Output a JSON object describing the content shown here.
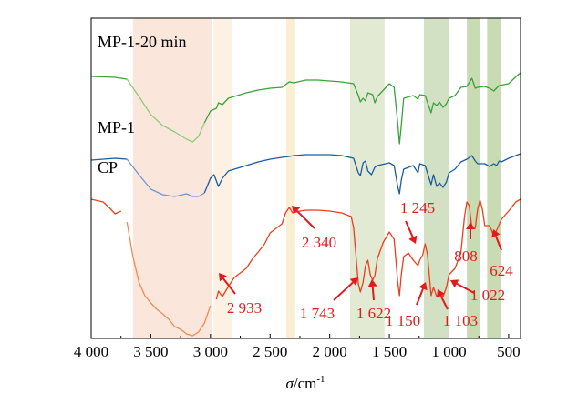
{
  "chart_data": {
    "type": "line",
    "xlabel_symbol": "σ",
    "xlabel_unit": "/cm",
    "xlabel_sup": "-1",
    "x_reversed": true,
    "xlim": [
      4000,
      400
    ],
    "x_ticks": [
      {
        "value": 4000,
        "label": "4 000"
      },
      {
        "value": 3500,
        "label": "3 500"
      },
      {
        "value": 3000,
        "label": "3 000"
      },
      {
        "value": 2500,
        "label": "2 500"
      },
      {
        "value": 2000,
        "label": "2 000"
      },
      {
        "value": 1500,
        "label": "1 500"
      },
      {
        "value": 1000,
        "label": "1 000"
      },
      {
        "value": 500,
        "label": "500"
      }
    ],
    "grid": false,
    "shaded_bands": [
      {
        "from": 3650,
        "to": 2990,
        "color": "#fbe6dc"
      },
      {
        "from": 2975,
        "to": 2820,
        "color": "#fdf1e3"
      },
      {
        "from": 2365,
        "to": 2290,
        "color": "#fbefd3"
      },
      {
        "from": 1830,
        "to": 1540,
        "color": "#e3ead4"
      },
      {
        "from": 1210,
        "to": 1000,
        "color": "#d2e0c4"
      },
      {
        "from": 850,
        "to": 740,
        "color": "#c9dbb3"
      },
      {
        "from": 680,
        "to": 560,
        "color": "#c9dbb3"
      }
    ],
    "series": [
      {
        "name": "MP-1-20 min",
        "color": "#3aa23a",
        "light_color": "#8ccd77",
        "light_range": [
          3700,
          3050
        ],
        "points": [
          [
            4000,
            64
          ],
          [
            3800,
            65
          ],
          [
            3700,
            67
          ],
          [
            3600,
            86
          ],
          [
            3500,
            106
          ],
          [
            3400,
            118
          ],
          [
            3300,
            125
          ],
          [
            3200,
            133
          ],
          [
            3150,
            136
          ],
          [
            3100,
            130
          ],
          [
            3050,
            115
          ],
          [
            3000,
            102
          ],
          [
            2950,
            99
          ],
          [
            2933,
            93
          ],
          [
            2900,
            95
          ],
          [
            2850,
            88
          ],
          [
            2700,
            82
          ],
          [
            2600,
            79
          ],
          [
            2500,
            77
          ],
          [
            2400,
            76
          ],
          [
            2340,
            70
          ],
          [
            2300,
            71
          ],
          [
            2200,
            68
          ],
          [
            2100,
            68
          ],
          [
            2000,
            69
          ],
          [
            1900,
            70
          ],
          [
            1800,
            72
          ],
          [
            1760,
            85
          ],
          [
            1743,
            92
          ],
          [
            1720,
            88
          ],
          [
            1700,
            91
          ],
          [
            1680,
            82
          ],
          [
            1640,
            84
          ],
          [
            1622,
            93
          ],
          [
            1600,
            86
          ],
          [
            1500,
            72
          ],
          [
            1460,
            76
          ],
          [
            1430,
            115
          ],
          [
            1415,
            138
          ],
          [
            1400,
            118
          ],
          [
            1380,
            88
          ],
          [
            1300,
            85
          ],
          [
            1260,
            89
          ],
          [
            1245,
            84
          ],
          [
            1200,
            85
          ],
          [
            1150,
            104
          ],
          [
            1130,
            93
          ],
          [
            1103,
            96
          ],
          [
            1080,
            92
          ],
          [
            1050,
            98
          ],
          [
            1022,
            94
          ],
          [
            1000,
            88
          ],
          [
            950,
            85
          ],
          [
            900,
            76
          ],
          [
            850,
            75
          ],
          [
            808,
            66
          ],
          [
            780,
            77
          ],
          [
            760,
            76
          ],
          [
            700,
            75
          ],
          [
            660,
            77
          ],
          [
            624,
            80
          ],
          [
            580,
            74
          ],
          [
            500,
            72
          ],
          [
            420,
            62
          ],
          [
            400,
            60
          ]
        ]
      },
      {
        "name": "MP-1",
        "color": "#1d5aa0",
        "light_color": "#6f97cf",
        "light_range": [
          3700,
          3050
        ],
        "points": [
          [
            4000,
            156
          ],
          [
            3800,
            154
          ],
          [
            3700,
            155
          ],
          [
            3600,
            172
          ],
          [
            3500,
            188
          ],
          [
            3400,
            194
          ],
          [
            3300,
            196
          ],
          [
            3200,
            193
          ],
          [
            3150,
            196
          ],
          [
            3100,
            196
          ],
          [
            3050,
            192
          ],
          [
            3000,
            176
          ],
          [
            2970,
            172
          ],
          [
            2933,
            185
          ],
          [
            2900,
            176
          ],
          [
            2850,
            168
          ],
          [
            2700,
            162
          ],
          [
            2600,
            158
          ],
          [
            2500,
            155
          ],
          [
            2400,
            153
          ],
          [
            2340,
            152
          ],
          [
            2300,
            151
          ],
          [
            2200,
            150
          ],
          [
            2100,
            150
          ],
          [
            2000,
            150
          ],
          [
            1900,
            151
          ],
          [
            1800,
            154
          ],
          [
            1760,
            170
          ],
          [
            1743,
            173
          ],
          [
            1720,
            159
          ],
          [
            1700,
            157
          ],
          [
            1680,
            168
          ],
          [
            1650,
            172
          ],
          [
            1622,
            164
          ],
          [
            1600,
            162
          ],
          [
            1500,
            159
          ],
          [
            1460,
            162
          ],
          [
            1430,
            185
          ],
          [
            1415,
            193
          ],
          [
            1400,
            178
          ],
          [
            1380,
            166
          ],
          [
            1300,
            162
          ],
          [
            1260,
            170
          ],
          [
            1245,
            160
          ],
          [
            1200,
            162
          ],
          [
            1150,
            183
          ],
          [
            1130,
            172
          ],
          [
            1103,
            185
          ],
          [
            1080,
            181
          ],
          [
            1050,
            186
          ],
          [
            1022,
            180
          ],
          [
            1000,
            170
          ],
          [
            950,
            166
          ],
          [
            900,
            158
          ],
          [
            850,
            155
          ],
          [
            808,
            151
          ],
          [
            780,
            157
          ],
          [
            760,
            160
          ],
          [
            700,
            160
          ],
          [
            660,
            163
          ],
          [
            624,
            160
          ],
          [
            600,
            162
          ],
          [
            580,
            157
          ],
          [
            560,
            158
          ],
          [
            500,
            154
          ],
          [
            420,
            150
          ],
          [
            400,
            149
          ]
        ]
      },
      {
        "name": "CP",
        "color": "#e8401c",
        "light_color": "#f08a55",
        "light_range": [
          3720,
          2990
        ],
        "points": [
          [
            4000,
            199
          ],
          [
            3900,
            202
          ],
          [
            3850,
            208
          ],
          [
            3800,
            215
          ],
          [
            3750,
            212
          ],
          [
            3700,
            224
          ],
          [
            3650,
            262
          ],
          [
            3600,
            290
          ],
          [
            3550,
            305
          ],
          [
            3500,
            313
          ],
          [
            3450,
            320
          ],
          [
            3400,
            325
          ],
          [
            3350,
            331
          ],
          [
            3300,
            339
          ],
          [
            3250,
            342
          ],
          [
            3200,
            347
          ],
          [
            3150,
            349
          ],
          [
            3100,
            345
          ],
          [
            3050,
            335
          ],
          [
            3000,
            316
          ],
          [
            2950,
            309
          ],
          [
            2933,
            300
          ],
          [
            2900,
            306
          ],
          [
            2850,
            295
          ],
          [
            2800,
            285
          ],
          [
            2700,
            275
          ],
          [
            2650,
            265
          ],
          [
            2600,
            257
          ],
          [
            2550,
            249
          ],
          [
            2500,
            236
          ],
          [
            2450,
            231
          ],
          [
            2400,
            226
          ],
          [
            2370,
            214
          ],
          [
            2340,
            208
          ],
          [
            2310,
            214
          ],
          [
            2250,
            212
          ],
          [
            2200,
            211
          ],
          [
            2100,
            211
          ],
          [
            2000,
            212
          ],
          [
            1900,
            214
          ],
          [
            1820,
            218
          ],
          [
            1800,
            230
          ],
          [
            1760,
            292
          ],
          [
            1743,
            301
          ],
          [
            1720,
            290
          ],
          [
            1700,
            272
          ],
          [
            1680,
            266
          ],
          [
            1660,
            282
          ],
          [
            1640,
            288
          ],
          [
            1622,
            283
          ],
          [
            1600,
            264
          ],
          [
            1550,
            246
          ],
          [
            1500,
            235
          ],
          [
            1460,
            243
          ],
          [
            1430,
            290
          ],
          [
            1415,
            305
          ],
          [
            1400,
            282
          ],
          [
            1380,
            262
          ],
          [
            1340,
            258
          ],
          [
            1300,
            266
          ],
          [
            1260,
            272
          ],
          [
            1245,
            266
          ],
          [
            1220,
            260
          ],
          [
            1200,
            248
          ],
          [
            1180,
            260
          ],
          [
            1150,
            305
          ],
          [
            1130,
            296
          ],
          [
            1103,
            306
          ],
          [
            1080,
            301
          ],
          [
            1050,
            306
          ],
          [
            1022,
            296
          ],
          [
            1000,
            282
          ],
          [
            950,
            275
          ],
          [
            900,
            258
          ],
          [
            870,
            218
          ],
          [
            850,
            202
          ],
          [
            830,
            206
          ],
          [
            808,
            231
          ],
          [
            780,
            231
          ],
          [
            760,
            210
          ],
          [
            740,
            200
          ],
          [
            720,
            210
          ],
          [
            700,
            228
          ],
          [
            660,
            228
          ],
          [
            640,
            234
          ],
          [
            624,
            240
          ],
          [
            600,
            233
          ],
          [
            560,
            221
          ],
          [
            500,
            212
          ],
          [
            440,
            202
          ],
          [
            400,
            199
          ]
        ]
      }
    ],
    "series_labels": [
      "MP-1-20 min",
      "MP-1",
      "CP"
    ],
    "annotations": [
      {
        "label": "2 933",
        "x": 2933,
        "color": "#e31a1c"
      },
      {
        "label": "2 340",
        "x": 2340,
        "color": "#e31a1c"
      },
      {
        "label": "1 743",
        "x": 1743,
        "color": "#e31a1c"
      },
      {
        "label": "1 622",
        "x": 1622,
        "color": "#e31a1c"
      },
      {
        "label": "1 245",
        "x": 1245,
        "color": "#e31a1c"
      },
      {
        "label": "1 150",
        "x": 1150,
        "color": "#e31a1c"
      },
      {
        "label": "1 103",
        "x": 1103,
        "color": "#e31a1c"
      },
      {
        "label": "1 022",
        "x": 1022,
        "color": "#e31a1c"
      },
      {
        "label": "808",
        "x": 808,
        "color": "#e31a1c"
      },
      {
        "label": "624",
        "x": 624,
        "color": "#e31a1c"
      }
    ]
  }
}
